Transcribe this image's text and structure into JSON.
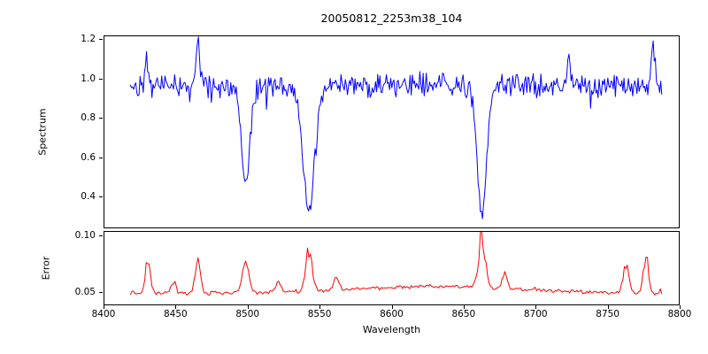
{
  "chart_data": {
    "type": "line",
    "title": "20050812_2253m38_104",
    "xlabel": "Wavelength",
    "grid": false,
    "legend_position": "none",
    "xlim": [
      8400,
      8800
    ],
    "x_ticks": {
      "values": [
        8400,
        8450,
        8500,
        8550,
        8600,
        8650,
        8700,
        8750,
        8800
      ],
      "labels": [
        "8400",
        "8450",
        "8500",
        "8550",
        "8600",
        "8650",
        "8700",
        "8750",
        "8800"
      ]
    },
    "x_data_range": [
      8418,
      8787
    ],
    "panels": [
      {
        "name": "spectrum",
        "ylabel": "Spectrum",
        "color": "#0000ff",
        "ylim": [
          0.24,
          1.22
        ],
        "y_ticks": {
          "values": [
            0.4,
            0.6,
            0.8,
            1.0,
            1.2
          ],
          "labels": [
            "0.4",
            "0.6",
            "0.8",
            "1.0",
            "1.2"
          ]
        },
        "continuum_level": 0.97,
        "noise_amplitude": 0.07,
        "absorption_lines": [
          {
            "center": 8498,
            "depth": 0.52,
            "sigma": 3.0
          },
          {
            "center": 8542,
            "depth": 0.66,
            "sigma": 4.0
          },
          {
            "center": 8662,
            "depth": 0.67,
            "sigma": 3.2
          }
        ],
        "emission_spikes": [
          {
            "x": 8429,
            "value": 1.12
          },
          {
            "x": 8465,
            "value": 1.21
          },
          {
            "x": 8722,
            "value": 1.12
          },
          {
            "x": 8781,
            "value": 1.2
          }
        ]
      },
      {
        "name": "error",
        "ylabel": "Error",
        "color": "#ff0000",
        "ylim": [
          0.0385,
          0.104
        ],
        "y_ticks": {
          "values": [
            0.05,
            0.1
          ],
          "labels": [
            "0.05",
            "0.10"
          ]
        },
        "baseline": 0.05,
        "noise_amplitude": 0.002,
        "broad_bump": {
          "center": 8630,
          "amplitude": 0.006,
          "sigma": 55
        },
        "peaks": [
          {
            "center": 8430,
            "amplitude": 0.028,
            "sigma": 1.8
          },
          {
            "center": 8448,
            "amplitude": 0.01,
            "sigma": 1.6
          },
          {
            "center": 8465,
            "amplitude": 0.03,
            "sigma": 1.8
          },
          {
            "center": 8498,
            "amplitude": 0.024,
            "sigma": 2.2
          },
          {
            "center": 8521,
            "amplitude": 0.008,
            "sigma": 1.8
          },
          {
            "center": 8542,
            "amplitude": 0.036,
            "sigma": 2.2
          },
          {
            "center": 8561,
            "amplitude": 0.011,
            "sigma": 1.8
          },
          {
            "center": 8662,
            "amplitude": 0.048,
            "sigma": 2.2
          },
          {
            "center": 8678,
            "amplitude": 0.013,
            "sigma": 1.8
          },
          {
            "center": 8762,
            "amplitude": 0.027,
            "sigma": 1.8
          },
          {
            "center": 8776,
            "amplitude": 0.031,
            "sigma": 1.8
          }
        ]
      }
    ]
  }
}
